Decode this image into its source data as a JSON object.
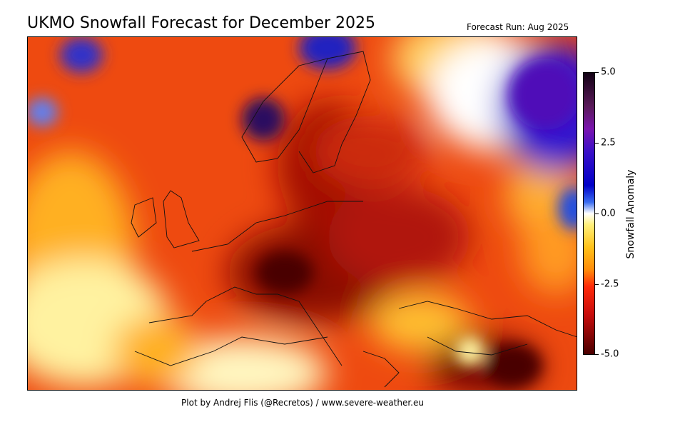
{
  "title": "UKMO Snowfall Forecast for December 2025",
  "forecast_run": "Forecast Run: Aug 2025",
  "credit": "Plot by Andrej Flis (@Recretos) / www.severe-weather.eu",
  "chart_data": {
    "type": "heatmap",
    "title": "UKMO Snowfall Forecast for December 2025",
    "region": "Europe",
    "colorbar": {
      "label": "Snowfall Anomaly",
      "range": [
        -5.0,
        5.0
      ],
      "ticks": [
        "5.0",
        "2.5",
        "0.0",
        "-2.5",
        "-5.0"
      ],
      "colors": {
        "-5.0": "#4a0000",
        "-2.5": "#ff2a0a",
        "0.0": "#ffffff",
        "2.5": "#3a10c8",
        "5.0": "#120214"
      }
    }
  }
}
